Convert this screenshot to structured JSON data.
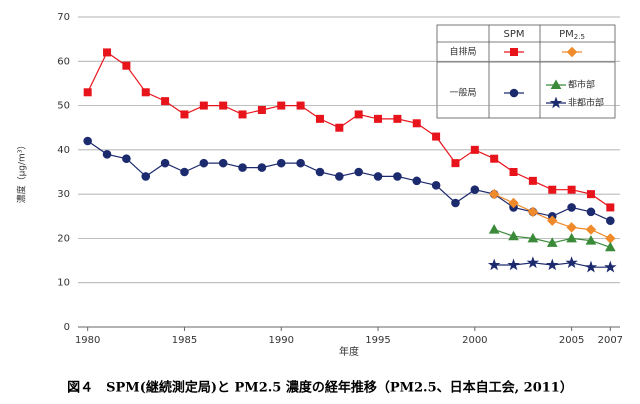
{
  "chart_data": {
    "type": "line",
    "caption": "図４　SPM(継続測定局)と PM2.5 濃度の経年推移（PM2.5、日本自工会, 2011）",
    "x_label": "年度",
    "y_label": "濃度（μg/m³）",
    "x": [
      1980,
      1981,
      1982,
      1983,
      1984,
      1985,
      1986,
      1987,
      1988,
      1989,
      1990,
      1991,
      1992,
      1993,
      1994,
      1995,
      1996,
      1997,
      1998,
      1999,
      2000,
      2001,
      2002,
      2003,
      2004,
      2005,
      2006,
      2007
    ],
    "xlim": [
      1979.5,
      2007.5
    ],
    "xticks": [
      1980,
      1985,
      1990,
      1995,
      2000,
      2005,
      2007
    ],
    "ylim": [
      0,
      70
    ],
    "yticks": [
      0,
      10,
      20,
      30,
      40,
      50,
      60,
      70
    ],
    "grid": true,
    "legend": {
      "columns": [
        "SPM",
        {
          "text": "PM",
          "sub": "2.5"
        }
      ],
      "rows": [
        "自排局",
        "一般局"
      ]
    },
    "series": [
      {
        "color": "#e8141c",
        "marker": "square",
        "values": [
          53,
          62,
          59,
          53,
          51,
          48,
          50,
          50,
          48,
          49,
          50,
          50,
          47,
          45,
          48,
          47,
          47,
          46,
          43,
          37,
          40,
          38,
          35,
          33,
          31,
          31,
          30,
          27
        ]
      },
      {
        "color": "#1c2a6e",
        "marker": "circle",
        "values": [
          42,
          39,
          38,
          34,
          37,
          35,
          37,
          37,
          36,
          36,
          37,
          37,
          35,
          34,
          35,
          34,
          34,
          33,
          32,
          28,
          31,
          30,
          27,
          26,
          25,
          27,
          26,
          24
        ]
      },
      {
        "color": "#f08a2a",
        "marker": "diamond",
        "values": [
          null,
          null,
          null,
          null,
          null,
          null,
          null,
          null,
          null,
          null,
          null,
          null,
          null,
          null,
          null,
          null,
          null,
          null,
          null,
          null,
          null,
          30,
          28,
          26,
          24,
          22.5,
          22,
          20
        ]
      },
      {
        "name": "都市部",
        "color": "#3a8a3a",
        "marker": "triangle",
        "values": [
          null,
          null,
          null,
          null,
          null,
          null,
          null,
          null,
          null,
          null,
          null,
          null,
          null,
          null,
          null,
          null,
          null,
          null,
          null,
          null,
          null,
          22,
          20.5,
          20,
          19,
          20,
          19.5,
          18
        ]
      },
      {
        "name": "非都市部",
        "color": "#1c2a6e",
        "marker": "star",
        "values": [
          null,
          null,
          null,
          null,
          null,
          null,
          null,
          null,
          null,
          null,
          null,
          null,
          null,
          null,
          null,
          null,
          null,
          null,
          null,
          null,
          null,
          14,
          14,
          14.5,
          14,
          14.5,
          13.5,
          13.5
        ]
      }
    ]
  }
}
